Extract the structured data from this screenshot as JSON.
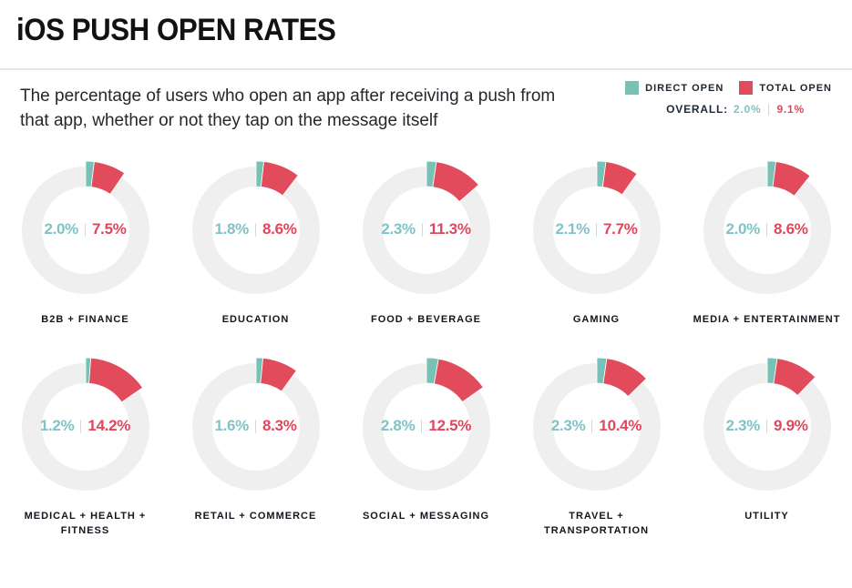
{
  "page": {
    "title": "iOS PUSH OPEN RATES",
    "subtitle": "The percentage of users who open an app after receiving a push from that app, whether or not they tap on the message itself"
  },
  "legend": {
    "direct_label": "DIRECT OPEN",
    "total_label": "TOTAL OPEN",
    "overall_label": "OVERALL:",
    "overall_direct": "2.0%",
    "overall_total": "9.1%"
  },
  "colors": {
    "direct_fill": "#79c1b7",
    "direct_text": "#80c3c6",
    "total_fill": "#e14b5c",
    "total_text": "#e0475c",
    "ring": "#f0efef",
    "divider": "#d8d8d8"
  },
  "chart_data": {
    "type": "pie",
    "variant": "donut-grid",
    "unit": "%",
    "title": "iOS PUSH OPEN RATES",
    "series_names": [
      "DIRECT OPEN",
      "TOTAL OPEN"
    ],
    "overall": {
      "direct": 2.0,
      "total": 9.1
    },
    "categories": [
      "B2B + FINANCE",
      "EDUCATION",
      "FOOD + BEVERAGE",
      "GAMING",
      "MEDIA + ENTERTAINMENT",
      "MEDICAL + HEALTH + FITNESS",
      "RETAIL + COMMERCE",
      "SOCIAL + MESSAGING",
      "TRAVEL + TRANSPORTATION",
      "UTILITY"
    ],
    "items": [
      {
        "label": "B2B + FINANCE",
        "direct": 2.0,
        "total": 7.5
      },
      {
        "label": "EDUCATION",
        "direct": 1.8,
        "total": 8.6
      },
      {
        "label": "FOOD + BEVERAGE",
        "direct": 2.3,
        "total": 11.3
      },
      {
        "label": "GAMING",
        "direct": 2.1,
        "total": 7.7
      },
      {
        "label": "MEDIA + ENTERTAINMENT",
        "direct": 2.0,
        "total": 8.6
      },
      {
        "label": "MEDICAL + HEALTH + FITNESS",
        "direct": 1.2,
        "total": 14.2
      },
      {
        "label": "RETAIL + COMMERCE",
        "direct": 1.6,
        "total": 8.3
      },
      {
        "label": "SOCIAL + MESSAGING",
        "direct": 2.8,
        "total": 12.5
      },
      {
        "label": "TRAVEL + TRANSPORTATION",
        "direct": 2.3,
        "total": 10.4
      },
      {
        "label": "UTILITY",
        "direct": 2.3,
        "total": 9.9
      }
    ]
  }
}
